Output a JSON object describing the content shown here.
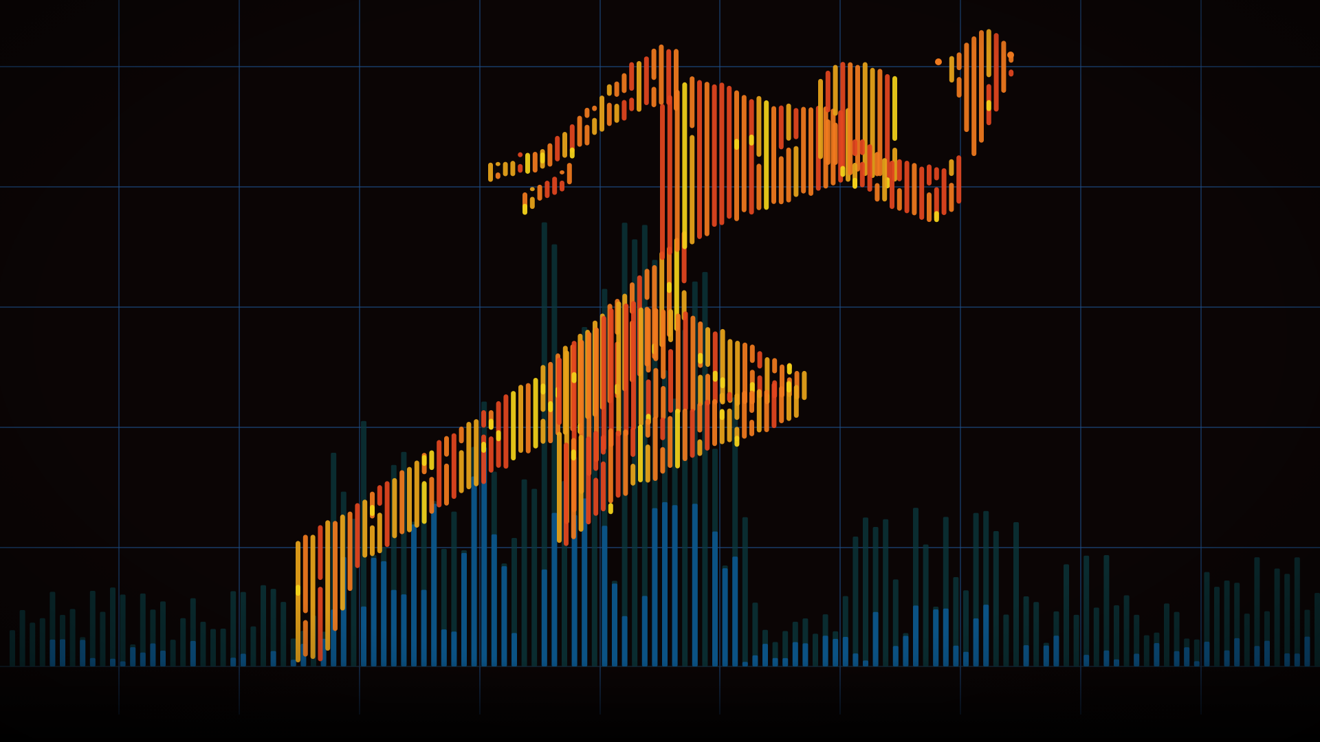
{
  "scene": {
    "subject": "sprinter-silhouette",
    "icon_names": [
      "sprinter-silhouette",
      "bar-histogram",
      "grid-lines"
    ],
    "colors": {
      "background": "#0b0505",
      "grid": "#1f4f8a",
      "teal_bar": "#0b3a3f",
      "blue_bar": "#0b5c9a",
      "figure_red": "#e2461f",
      "figure_orange": "#f07a1e",
      "figure_gold": "#e8a41a",
      "figure_yellow": "#f2d21a"
    }
  }
}
